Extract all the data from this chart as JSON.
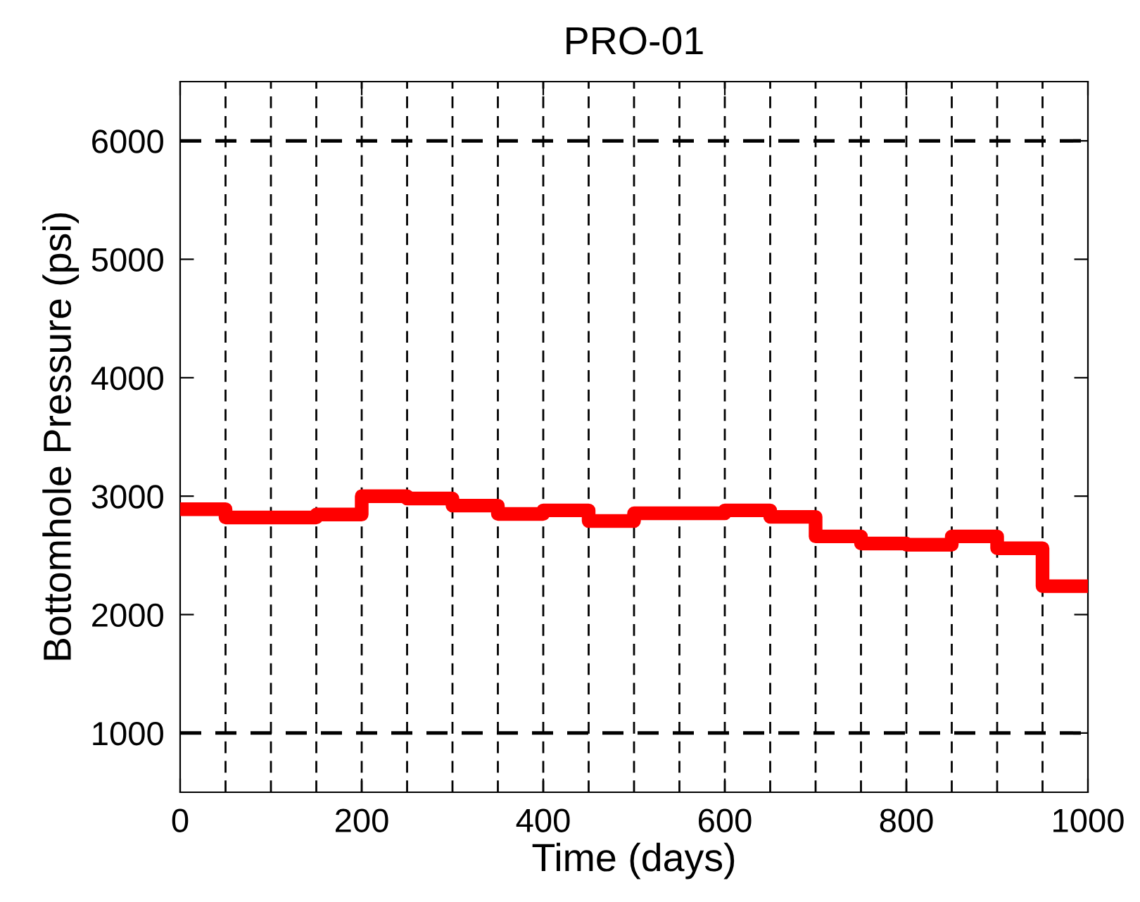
{
  "chart_data": {
    "type": "step",
    "title": "PRO-01",
    "xlabel": "Time (days)",
    "ylabel": "Bottomhole Pressure (psi)",
    "x": [
      0,
      50,
      100,
      150,
      200,
      250,
      300,
      350,
      400,
      450,
      500,
      550,
      600,
      650,
      700,
      750,
      800,
      850,
      900,
      950,
      1000
    ],
    "series": [
      {
        "color": "#ff0000",
        "values": [
          2890,
          2820,
          2820,
          2845,
          3000,
          2980,
          2920,
          2850,
          2880,
          2790,
          2855,
          2855,
          2880,
          2825,
          2660,
          2600,
          2590,
          2660,
          2560,
          2240,
          2240
        ]
      }
    ],
    "xlim": [
      0,
      1000
    ],
    "ylim": [
      500,
      6500
    ],
    "xticks": [
      0,
      200,
      400,
      600,
      800,
      1000
    ],
    "yticks": [
      1000,
      2000,
      3000,
      4000,
      5000,
      6000
    ],
    "grid": false,
    "legend": false,
    "line_style": "solid",
    "ref_lines": [
      {
        "axis": "y",
        "value": 1000,
        "line_style": "dashed"
      },
      {
        "axis": "y",
        "value": 6000,
        "line_style": "dashed"
      },
      {
        "axis": "x",
        "value": 50,
        "line_style": "dashed"
      },
      {
        "axis": "x",
        "value": 100,
        "line_style": "dashed"
      },
      {
        "axis": "x",
        "value": 150,
        "line_style": "dashed"
      },
      {
        "axis": "x",
        "value": 200,
        "line_style": "dashed"
      },
      {
        "axis": "x",
        "value": 250,
        "line_style": "dashed"
      },
      {
        "axis": "x",
        "value": 300,
        "line_style": "dashed"
      },
      {
        "axis": "x",
        "value": 350,
        "line_style": "dashed"
      },
      {
        "axis": "x",
        "value": 400,
        "line_style": "dashed"
      },
      {
        "axis": "x",
        "value": 450,
        "line_style": "dashed"
      },
      {
        "axis": "x",
        "value": 500,
        "line_style": "dashed"
      },
      {
        "axis": "x",
        "value": 550,
        "line_style": "dashed"
      },
      {
        "axis": "x",
        "value": 600,
        "line_style": "dashed"
      },
      {
        "axis": "x",
        "value": 650,
        "line_style": "dashed"
      },
      {
        "axis": "x",
        "value": 700,
        "line_style": "dashed"
      },
      {
        "axis": "x",
        "value": 750,
        "line_style": "dashed"
      },
      {
        "axis": "x",
        "value": 800,
        "line_style": "dashed"
      },
      {
        "axis": "x",
        "value": 850,
        "line_style": "dashed"
      },
      {
        "axis": "x",
        "value": 900,
        "line_style": "dashed"
      },
      {
        "axis": "x",
        "value": 950,
        "line_style": "dashed"
      }
    ]
  }
}
